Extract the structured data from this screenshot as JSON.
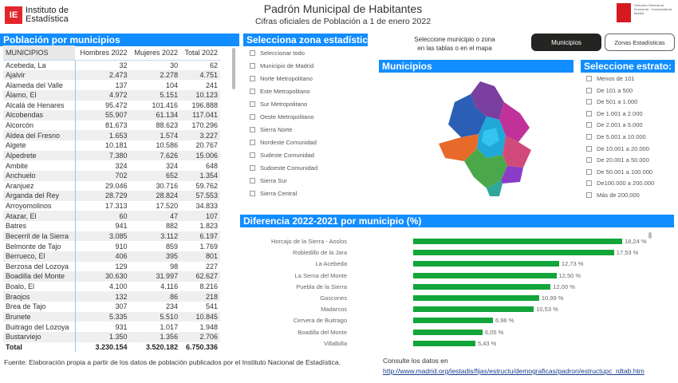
{
  "header": {
    "logo_left_text": [
      "Instituto de",
      "Estadística"
    ],
    "title": "Padrón Municipal de Habitantes",
    "subtitle": "Cifras oficiales de Población a 1 de enero 2022",
    "logo_right_text": "Dirección General de Economía · Comunidad de Madrid"
  },
  "table": {
    "title": "Población por municipios",
    "columns": [
      "MUNICIPIOS",
      "Hombres 2022",
      "Mujeres 2022",
      "Total 2022"
    ],
    "rows": [
      [
        "Acebeda, La",
        "32",
        "30",
        "62"
      ],
      [
        "Ajalvir",
        "2.473",
        "2.278",
        "4.751"
      ],
      [
        "Alameda del Valle",
        "137",
        "104",
        "241"
      ],
      [
        "Álamo, El",
        "4.972",
        "5.151",
        "10.123"
      ],
      [
        "Alcalá de Henares",
        "95.472",
        "101.416",
        "196.888"
      ],
      [
        "Alcobendas",
        "55.907",
        "61.134",
        "117.041"
      ],
      [
        "Alcorcón",
        "81.673",
        "88.623",
        "170.296"
      ],
      [
        "Aldea del Fresno",
        "1.653",
        "1.574",
        "3.227"
      ],
      [
        "Algete",
        "10.181",
        "10.586",
        "20.767"
      ],
      [
        "Alpedrete",
        "7.380",
        "7.626",
        "15.006"
      ],
      [
        "Ambite",
        "324",
        "324",
        "648"
      ],
      [
        "Anchuelo",
        "702",
        "652",
        "1.354"
      ],
      [
        "Aranjuez",
        "29.046",
        "30.716",
        "59.762"
      ],
      [
        "Arganda del Rey",
        "28.729",
        "28.824",
        "57.553"
      ],
      [
        "Arroyomolinos",
        "17.313",
        "17.520",
        "34.833"
      ],
      [
        "Atazar, El",
        "60",
        "47",
        "107"
      ],
      [
        "Batres",
        "941",
        "882",
        "1.823"
      ],
      [
        "Becerril de la Sierra",
        "3.085",
        "3.112",
        "6.197"
      ],
      [
        "Belmonte de Tajo",
        "910",
        "859",
        "1.769"
      ],
      [
        "Berrueco, El",
        "406",
        "395",
        "801"
      ],
      [
        "Berzosa del Lozoya",
        "129",
        "98",
        "227"
      ],
      [
        "Boadilla del Monte",
        "30.630",
        "31.997",
        "62.627"
      ],
      [
        "Boalo, El",
        "4.100",
        "4.116",
        "8.216"
      ],
      [
        "Braojos",
        "132",
        "86",
        "218"
      ],
      [
        "Brea de Tajo",
        "307",
        "234",
        "541"
      ],
      [
        "Brunete",
        "5.335",
        "5.510",
        "10.845"
      ],
      [
        "Buitrago del Lozoya",
        "931",
        "1.017",
        "1.948"
      ],
      [
        "Bustarviejo",
        "1.350",
        "1.356",
        "2.706"
      ]
    ],
    "total": [
      "Total",
      "3.230.154",
      "3.520.182",
      "6.750.336"
    ]
  },
  "zones": {
    "title": "Selecciona zona estadística:",
    "items": [
      "Seleccionar todo",
      "Municipio de Madrid",
      "Norte Metropolitano",
      "Este Metropolitano",
      "Sur Metropolitano",
      "Oeste Metropolitano",
      "Sierra Norte",
      "Nordeste Comunidad",
      "Sudeste Comunidad",
      "Sudoeste Comunidad",
      "Sierra Sur",
      "Sierra Central"
    ]
  },
  "instruction": [
    "Seleccione municipio o zona",
    "en las tablas o en el mapa"
  ],
  "toggle": {
    "active": "Municipios",
    "inactive": "Zonas Estadísticas"
  },
  "map": {
    "title": "Municipios"
  },
  "strata": {
    "title": "Seleccione estrato:",
    "items": [
      "Menos de 101",
      "De 101 a 500",
      "De 501 a 1.000",
      "De 1.001 a 2.000",
      "De 2.001 a 5.000",
      "De 5.001 a 10.000",
      "De 10.001 a 20.000",
      "De 20.001 a 50.000",
      "De 50.001 a 100.000",
      "De100.000 a 200.000",
      "Más de 200.000"
    ]
  },
  "chart_data": {
    "type": "bar",
    "orientation": "horizontal",
    "title": "Diferencia 2022-2021 por municipio (%)",
    "bar_color": "#12a53a",
    "categories": [
      "Horcajo de la Sierra - Aoslos",
      "Robledillo de la Jara",
      "La Acebeda",
      "La Serna del Monte",
      "Puebla de la Sierra",
      "Gascones",
      "Madarcos",
      "Cervera de Buitrago",
      "Boadilla del Monte",
      "Villalbilla"
    ],
    "values": [
      18.24,
      17.53,
      12.73,
      12.5,
      12.0,
      10.99,
      10.53,
      6.96,
      6.05,
      5.43
    ],
    "labels": [
      "18,24 %",
      "17,53 %",
      "12,73 %",
      "12,50 %",
      "12,00 %",
      "10,99 %",
      "10,53 %",
      "6,96 %",
      "6,05 %",
      "5,43 %"
    ]
  },
  "footer": {
    "source": "Fuente: Elaboración propia a partir de los datos de población publicados por el Instituto Nacional de Estadística.",
    "consult": "Consulte los datos en",
    "link": "http://www.madrid.org/iestadis/fijas/estructu/demograficas/padron/estructupc_rdtab.htm"
  }
}
